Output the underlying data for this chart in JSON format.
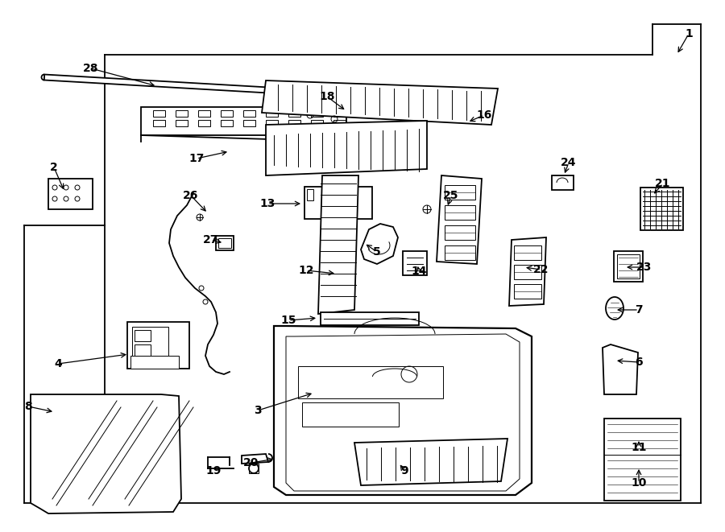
{
  "bg_color": "#ffffff",
  "line_color": "#000000",
  "figsize": [
    9.0,
    6.61
  ],
  "dpi": 100,
  "label_arrows": [
    [
      "1",
      855,
      42,
      840,
      68,
      true
    ],
    [
      "2",
      67,
      208,
      80,
      238,
      true
    ],
    [
      "3",
      320,
      510,
      390,
      488,
      true
    ],
    [
      "4",
      72,
      452,
      160,
      440,
      true
    ],
    [
      "5",
      468,
      313,
      452,
      302,
      true
    ],
    [
      "6",
      793,
      450,
      763,
      448,
      true
    ],
    [
      "7",
      793,
      385,
      763,
      385,
      true
    ],
    [
      "8",
      35,
      505,
      68,
      512,
      true
    ],
    [
      "9",
      502,
      585,
      495,
      575,
      true
    ],
    [
      "10",
      793,
      600,
      793,
      580,
      true
    ],
    [
      "11",
      793,
      556,
      793,
      545,
      true
    ],
    [
      "12",
      380,
      336,
      418,
      340,
      true
    ],
    [
      "13",
      332,
      253,
      376,
      253,
      true
    ],
    [
      "14",
      520,
      337,
      518,
      328,
      true
    ],
    [
      "15",
      358,
      398,
      395,
      395,
      true
    ],
    [
      "16",
      601,
      143,
      580,
      152,
      true
    ],
    [
      "17",
      244,
      197,
      285,
      188,
      true
    ],
    [
      "18",
      406,
      120,
      430,
      138,
      true
    ],
    [
      "19",
      265,
      585,
      265,
      572,
      false
    ],
    [
      "20",
      312,
      575,
      342,
      570,
      true
    ],
    [
      "21",
      823,
      228,
      810,
      243,
      true
    ],
    [
      "22",
      672,
      335,
      650,
      332,
      true
    ],
    [
      "23",
      800,
      332,
      775,
      332,
      true
    ],
    [
      "24",
      706,
      202,
      700,
      218,
      true
    ],
    [
      "25",
      560,
      243,
      555,
      258,
      true
    ],
    [
      "26",
      237,
      243,
      258,
      265,
      true
    ],
    [
      "27",
      262,
      298,
      278,
      302,
      true
    ],
    [
      "28",
      113,
      85,
      195,
      107,
      true
    ]
  ]
}
